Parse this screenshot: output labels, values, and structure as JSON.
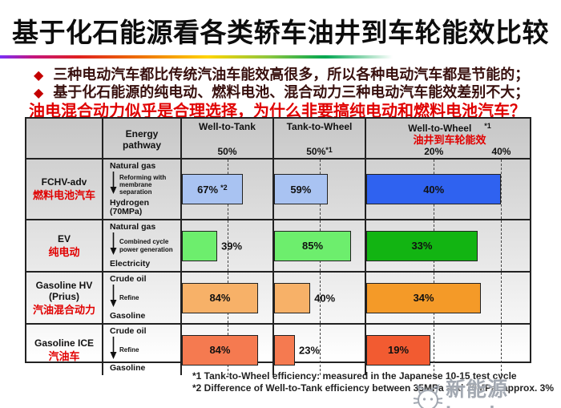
{
  "slide": {
    "title": "基于化石能源看各类轿车油井到车轮能效比较",
    "bullet_icon": "◆",
    "bullets": [
      "三种电动汽车都比传统汽油车能效高很多，所以各种电动汽车都是节能的；",
      "基于化石能源的纯电动、燃料电池、混合动力三种电动汽车能效差别不大；"
    ],
    "highlight": "油电混合动力似乎是合理选择，为什么非要搞纯电动和燃料电池汽车？"
  },
  "chart_data": {
    "type": "bar",
    "orientation": "horizontal",
    "unit": "%",
    "header": {
      "pathway_label": "Energy\npathway",
      "columns": [
        {
          "key": "well_to_tank",
          "label": "Well-to-Tank",
          "max": 100,
          "gridlines": [
            {
              "value": 50,
              "label": "50%"
            }
          ]
        },
        {
          "key": "tank_to_wheel",
          "label": "Tank-to-Wheel",
          "max": 100,
          "gridlines": [
            {
              "value": 50,
              "label": "50%",
              "note": "*1"
            }
          ]
        },
        {
          "key": "well_to_wheel",
          "label": "Well-to-Wheel",
          "note": "*1",
          "label_cn": "油井到车轮能效",
          "max": 49.4,
          "gridlines": [
            {
              "value": 20,
              "label": "20%"
            },
            {
              "value": 40,
              "label": "40%"
            }
          ]
        }
      ]
    },
    "rows": [
      {
        "label_en": "FCHV-adv",
        "label_cn": "燃料电池汽车",
        "pathway": {
          "from": "Natural gas",
          "process": "Reforming with membrane separation",
          "to": "Hydrogen (70MPa)"
        },
        "bars": [
          {
            "column": "well_to_tank",
            "value": 67,
            "label": "67%",
            "note": "*2",
            "color": "#a9c3f2"
          },
          {
            "column": "tank_to_wheel",
            "value": 59,
            "label": "59%",
            "color": "#a9c3f2"
          },
          {
            "column": "well_to_wheel",
            "value": 40,
            "label": "40%",
            "color": "#2f62f0"
          }
        ]
      },
      {
        "label_en": "EV",
        "label_cn": "纯电动",
        "pathway": {
          "from": "Natural gas",
          "process": "Combined cycle power generation",
          "to": "Electricity"
        },
        "bars": [
          {
            "column": "well_to_tank",
            "value": 39,
            "label": "39%",
            "color": "#6dee6d"
          },
          {
            "column": "tank_to_wheel",
            "value": 85,
            "label": "85%",
            "color": "#6dee6d"
          },
          {
            "column": "well_to_wheel",
            "value": 33,
            "label": "33%",
            "color": "#12b412"
          }
        ]
      },
      {
        "label_en": "Gasoline HV\n(Prius)",
        "label_cn": "汽油混合动力",
        "pathway": {
          "from": "Crude oil",
          "process": "Refine",
          "to": "Gasoline"
        },
        "bars": [
          {
            "column": "well_to_tank",
            "value": 84,
            "label": "84%",
            "color": "#f7b168"
          },
          {
            "column": "tank_to_wheel",
            "value": 40,
            "label": "40%",
            "color": "#f7b168"
          },
          {
            "column": "well_to_wheel",
            "value": 34,
            "label": "34%",
            "color": "#f49a28"
          }
        ]
      },
      {
        "label_en": "Gasoline ICE",
        "label_cn": "汽油车",
        "pathway": {
          "from": "Crude oil",
          "process": "Refine",
          "to": "Gasoline"
        },
        "bars": [
          {
            "column": "well_to_tank",
            "value": 84,
            "label": "84%",
            "color": "#f57a50"
          },
          {
            "column": "tank_to_wheel",
            "value": 23,
            "label": "23%",
            "color": "#f57a50"
          },
          {
            "column": "well_to_wheel",
            "value": 19,
            "label": "19%",
            "color": "#f25b31"
          }
        ]
      }
    ]
  },
  "footnotes": [
    "*1 Tank-to-Wheel efficiency: measured in the Japanese 10-15 test cycle",
    "*2 Difference of Well-to-Tank efficiency between 35MPa and 70MPa: approx. 3%"
  ],
  "watermark": {
    "text": "新能源Leader",
    "icon": "cat-face-icon"
  }
}
